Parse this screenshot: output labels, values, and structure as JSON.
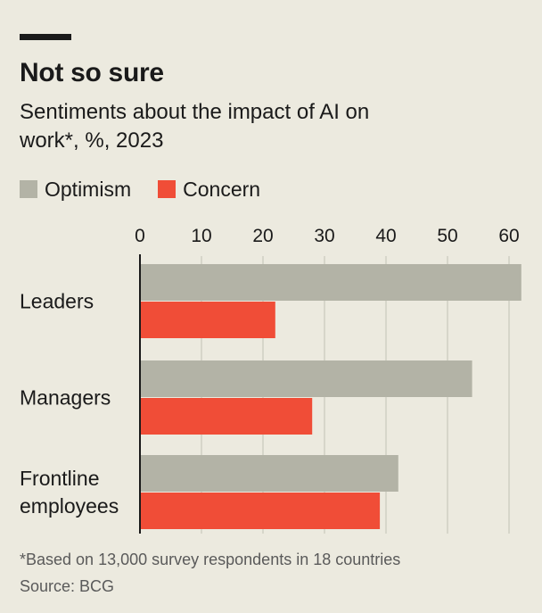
{
  "header": {
    "title": "Not so sure",
    "subtitle": "Sentiments about the impact of AI on work*, %, 2023"
  },
  "legend": {
    "items": [
      {
        "label": "Optimism",
        "color": "#b3b3a6"
      },
      {
        "label": "Concern",
        "color": "#f04d37"
      }
    ]
  },
  "footer": {
    "footnote": "*Based on 13,000 survey respondents in 18 countries",
    "source": "Source: BCG"
  },
  "chart_data": {
    "type": "bar",
    "orientation": "horizontal",
    "categories": [
      [
        "Leaders"
      ],
      [
        "Managers"
      ],
      [
        "Frontline",
        "employees"
      ]
    ],
    "series": [
      {
        "name": "Optimism",
        "color": "#b3b3a6",
        "values": [
          62,
          54,
          42
        ]
      },
      {
        "name": "Concern",
        "color": "#f04d37",
        "values": [
          22,
          28,
          39
        ]
      }
    ],
    "xlim": [
      0,
      65
    ],
    "xticks": [
      0,
      10,
      20,
      30,
      40,
      50,
      60
    ],
    "grid": true,
    "legend_position": "top-left"
  }
}
